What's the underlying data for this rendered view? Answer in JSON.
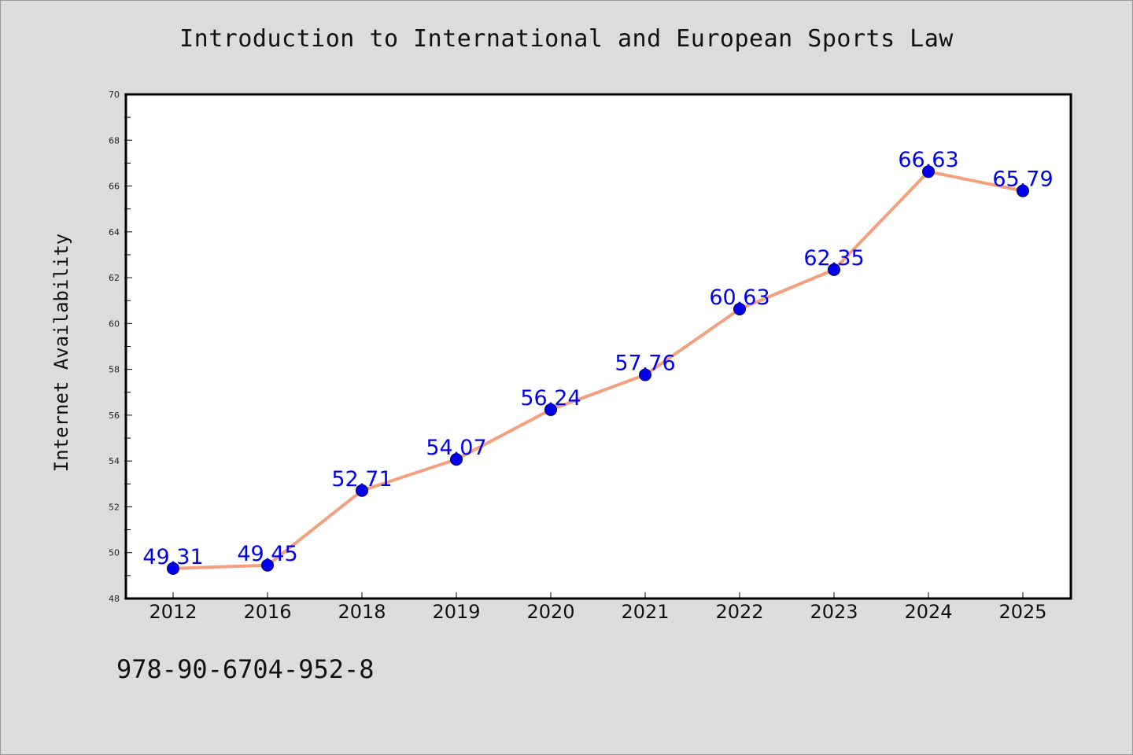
{
  "chart_data": {
    "type": "line",
    "title": "Introduction to International and European Sports Law",
    "xlabel": "",
    "ylabel": "Internet Availability",
    "categories": [
      "2012",
      "2016",
      "2018",
      "2019",
      "2020",
      "2021",
      "2022",
      "2023",
      "2024",
      "2025"
    ],
    "series": [
      {
        "values": [
          49.31,
          49.45,
          52.71,
          54.07,
          56.24,
          57.76,
          60.63,
          62.35,
          66.63,
          65.79
        ],
        "data_labels": [
          "49.31",
          "49.45",
          "52.71",
          "54.07",
          "56.24",
          "57.76",
          "60.63",
          "62.35",
          "66.63",
          "65.79"
        ],
        "line_color": "#f4a07f",
        "marker_color": "#0000ee",
        "label_color": "#0000ee"
      }
    ],
    "ylim": [
      48,
      70
    ],
    "y_ticks": [
      "48",
      "50",
      "52",
      "54",
      "56",
      "58",
      "60",
      "62",
      "64",
      "66",
      "68",
      "70"
    ],
    "grid": false,
    "legend": "none"
  },
  "caption": "978-90-6704-952-8",
  "colors": {
    "background": "#dcdcdc",
    "plot_background": "#ffffff",
    "axis": "#000000"
  }
}
